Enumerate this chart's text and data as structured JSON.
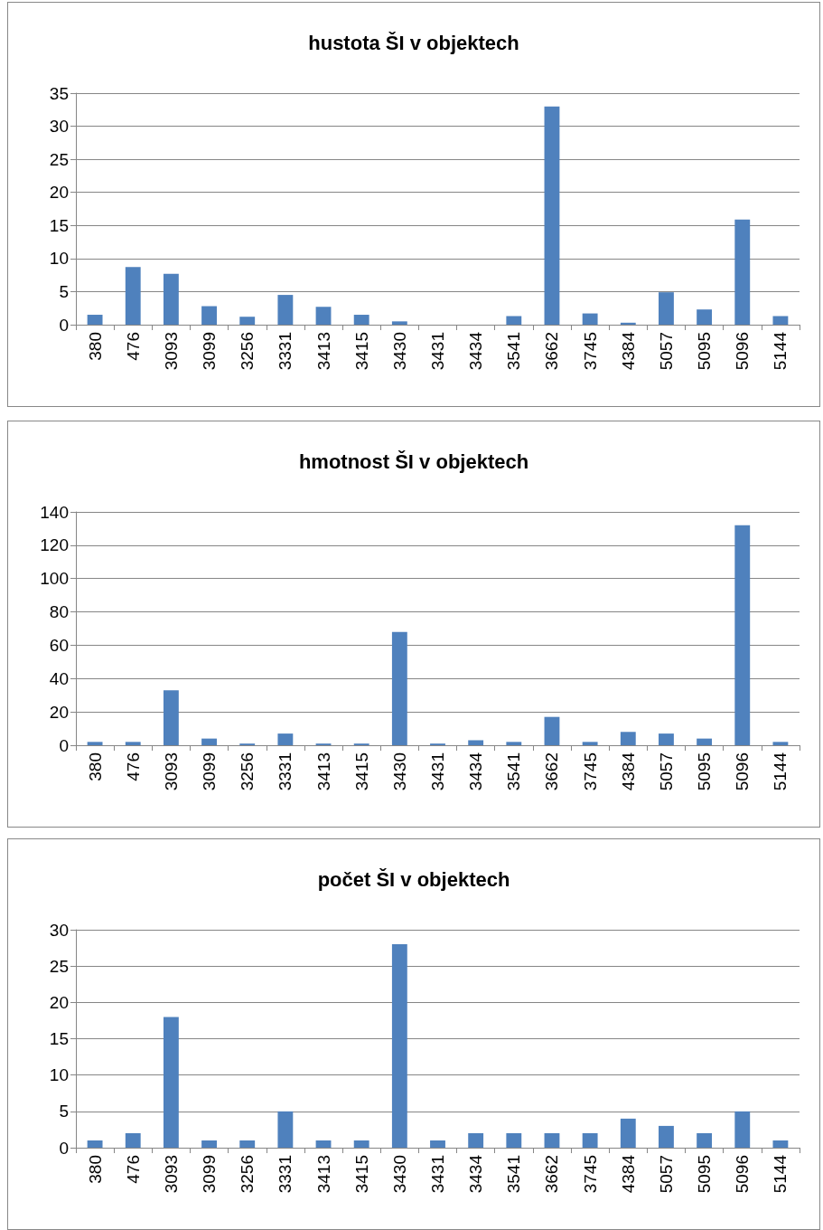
{
  "chart_data": [
    {
      "type": "bar",
      "title": "hustota ŠI v objektech",
      "categories": [
        "380",
        "476",
        "3093",
        "3099",
        "3256",
        "3331",
        "3413",
        "3415",
        "3430",
        "3431",
        "3434",
        "3541",
        "3662",
        "3745",
        "4384",
        "5057",
        "5095",
        "5096",
        "5144"
      ],
      "values": [
        1.5,
        8.7,
        7.7,
        2.8,
        1.2,
        4.5,
        2.7,
        1.5,
        0.5,
        0,
        0,
        1.3,
        33,
        1.7,
        0.3,
        4.9,
        2.3,
        15.9,
        1.3
      ],
      "color": "#4f81bd",
      "ylim": [
        0,
        35
      ],
      "yticks": [
        0,
        5,
        10,
        15,
        20,
        25,
        30,
        35
      ],
      "grid": "y"
    },
    {
      "type": "bar",
      "title": "hmotnost ŠI v objektech",
      "categories": [
        "380",
        "476",
        "3093",
        "3099",
        "3256",
        "3331",
        "3413",
        "3415",
        "3430",
        "3431",
        "3434",
        "3541",
        "3662",
        "3745",
        "4384",
        "5057",
        "5095",
        "5096",
        "5144"
      ],
      "values": [
        2,
        2,
        33,
        4,
        1,
        7,
        1,
        1,
        68,
        1,
        3,
        2,
        17,
        2,
        8,
        7,
        4,
        132,
        2
      ],
      "color": "#4f81bd",
      "ylim": [
        0,
        140
      ],
      "yticks": [
        0,
        20,
        40,
        60,
        80,
        100,
        120,
        140
      ],
      "grid": "y"
    },
    {
      "type": "bar",
      "title": "počet ŠI v objektech",
      "categories": [
        "380",
        "476",
        "3093",
        "3099",
        "3256",
        "3331",
        "3413",
        "3415",
        "3430",
        "3431",
        "3434",
        "3541",
        "3662",
        "3745",
        "4384",
        "5057",
        "5095",
        "5096",
        "5144"
      ],
      "values": [
        1,
        2,
        18,
        1,
        1,
        5,
        1,
        1,
        28,
        1,
        2,
        2,
        2,
        2,
        4,
        3,
        2,
        5,
        1
      ],
      "color": "#4f81bd",
      "ylim": [
        0,
        30
      ],
      "yticks": [
        0,
        5,
        10,
        15,
        20,
        25,
        30
      ],
      "grid": "y"
    }
  ]
}
